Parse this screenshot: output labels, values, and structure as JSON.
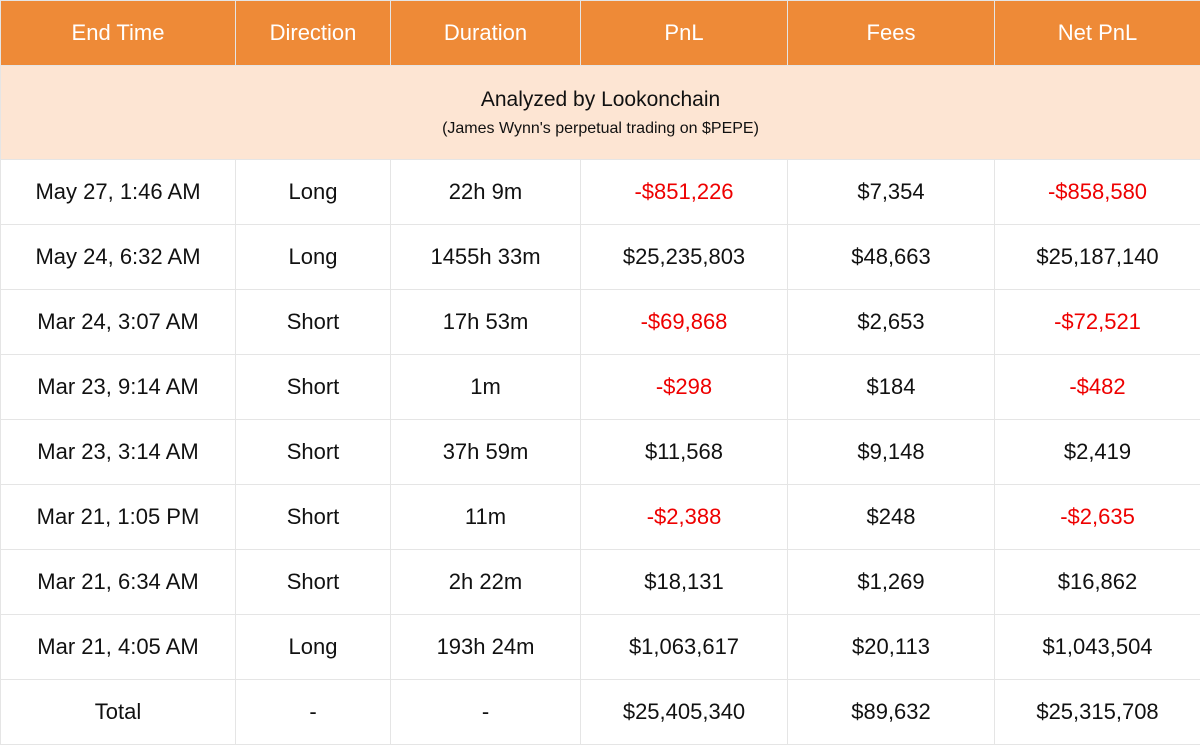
{
  "headers": [
    "End Time",
    "Direction",
    "Duration",
    "PnL",
    "Fees",
    "Net PnL"
  ],
  "banner": {
    "title": "Analyzed by Lookonchain",
    "subtitle": "(James Wynn's perpetual trading on $PEPE)"
  },
  "rows": [
    {
      "end_time": "May 27, 1:46 AM",
      "direction": "Long",
      "duration": "22h 9m",
      "pnl": "-$851,226",
      "fees": "$7,354",
      "net_pnl": "-$858,580"
    },
    {
      "end_time": "May 24, 6:32 AM",
      "direction": "Long",
      "duration": "1455h 33m",
      "pnl": "$25,235,803",
      "fees": "$48,663",
      "net_pnl": "$25,187,140"
    },
    {
      "end_time": "Mar 24, 3:07 AM",
      "direction": "Short",
      "duration": "17h 53m",
      "pnl": "-$69,868",
      "fees": "$2,653",
      "net_pnl": "-$72,521"
    },
    {
      "end_time": "Mar 23, 9:14 AM",
      "direction": "Short",
      "duration": "1m",
      "pnl": "-$298",
      "fees": "$184",
      "net_pnl": "-$482"
    },
    {
      "end_time": "Mar 23, 3:14 AM",
      "direction": "Short",
      "duration": "37h 59m",
      "pnl": "$11,568",
      "fees": "$9,148",
      "net_pnl": "$2,419"
    },
    {
      "end_time": "Mar 21, 1:05 PM",
      "direction": "Short",
      "duration": "11m",
      "pnl": "-$2,388",
      "fees": "$248",
      "net_pnl": "-$2,635"
    },
    {
      "end_time": "Mar 21, 6:34 AM",
      "direction": "Short",
      "duration": "2h 22m",
      "pnl": "$18,131",
      "fees": "$1,269",
      "net_pnl": "$16,862"
    },
    {
      "end_time": "Mar 21, 4:05 AM",
      "direction": "Long",
      "duration": "193h 24m",
      "pnl": "$1,063,617",
      "fees": "$20,113",
      "net_pnl": "$1,043,504"
    }
  ],
  "total": {
    "label": "Total",
    "direction": "-",
    "duration": "-",
    "pnl": "$25,405,340",
    "fees": "$89,632",
    "net_pnl": "$25,315,708"
  },
  "colors": {
    "header_bg": "#ee8a37",
    "banner_bg": "#fde5d3",
    "negative": "#ee0000"
  }
}
